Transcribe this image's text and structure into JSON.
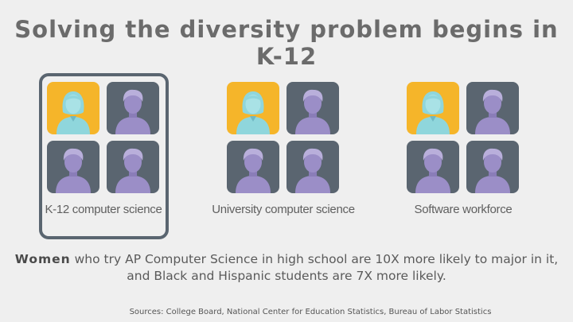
{
  "title": "Solving the diversity problem begins in K-12",
  "colors": {
    "woman_tile": "#f5b52a",
    "woman_figure": "#8fd6dc",
    "person_tile": "#5a6570",
    "person_figure": "#9b8ec7",
    "frame": "#5a6570"
  },
  "icons": {
    "woman": "woman-icon",
    "person": "person-icon"
  },
  "groups": [
    {
      "label": "K-12 computer science"
    },
    {
      "label": "University computer science"
    },
    {
      "label": "Software workforce"
    }
  ],
  "statement": {
    "emphasis": "Women",
    "rest": "who try AP Computer Science in high school are 10X more likely to major in it, and Black and Hispanic students are 7X more likely."
  },
  "sources": "Sources: College Board, National Center for Education Statistics, Bureau of Labor Statistics"
}
